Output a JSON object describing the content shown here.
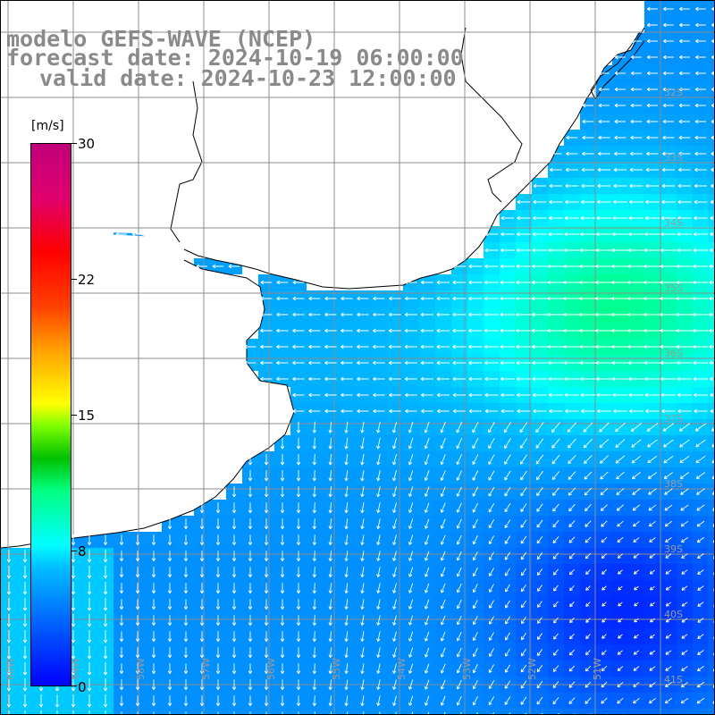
{
  "title": {
    "line1": "modelo GEFS-WAVE (NCEP)",
    "line2": "forecast date: 2024-10-19 06:00:00",
    "line3": "valid date: 2024-10-23 12:00:00"
  },
  "colorbar": {
    "unit": "[m/s]",
    "ticks": [
      "30",
      "22",
      "15",
      "8",
      "0"
    ],
    "tick_values": [
      30,
      22,
      15,
      8,
      0
    ]
  },
  "map": {
    "lat_labels": [
      "32S",
      "33S",
      "34S",
      "35S",
      "36S",
      "37S",
      "38S",
      "39S",
      "40S",
      "41S"
    ],
    "lon_labels": [
      "60W",
      "59W",
      "58W",
      "57W",
      "56W",
      "55W",
      "54W",
      "53W",
      "52W",
      "51W"
    ],
    "land_color": "#ffffff",
    "grid_color": "#8c8c8c",
    "arrow_color": "#ffffff"
  }
}
